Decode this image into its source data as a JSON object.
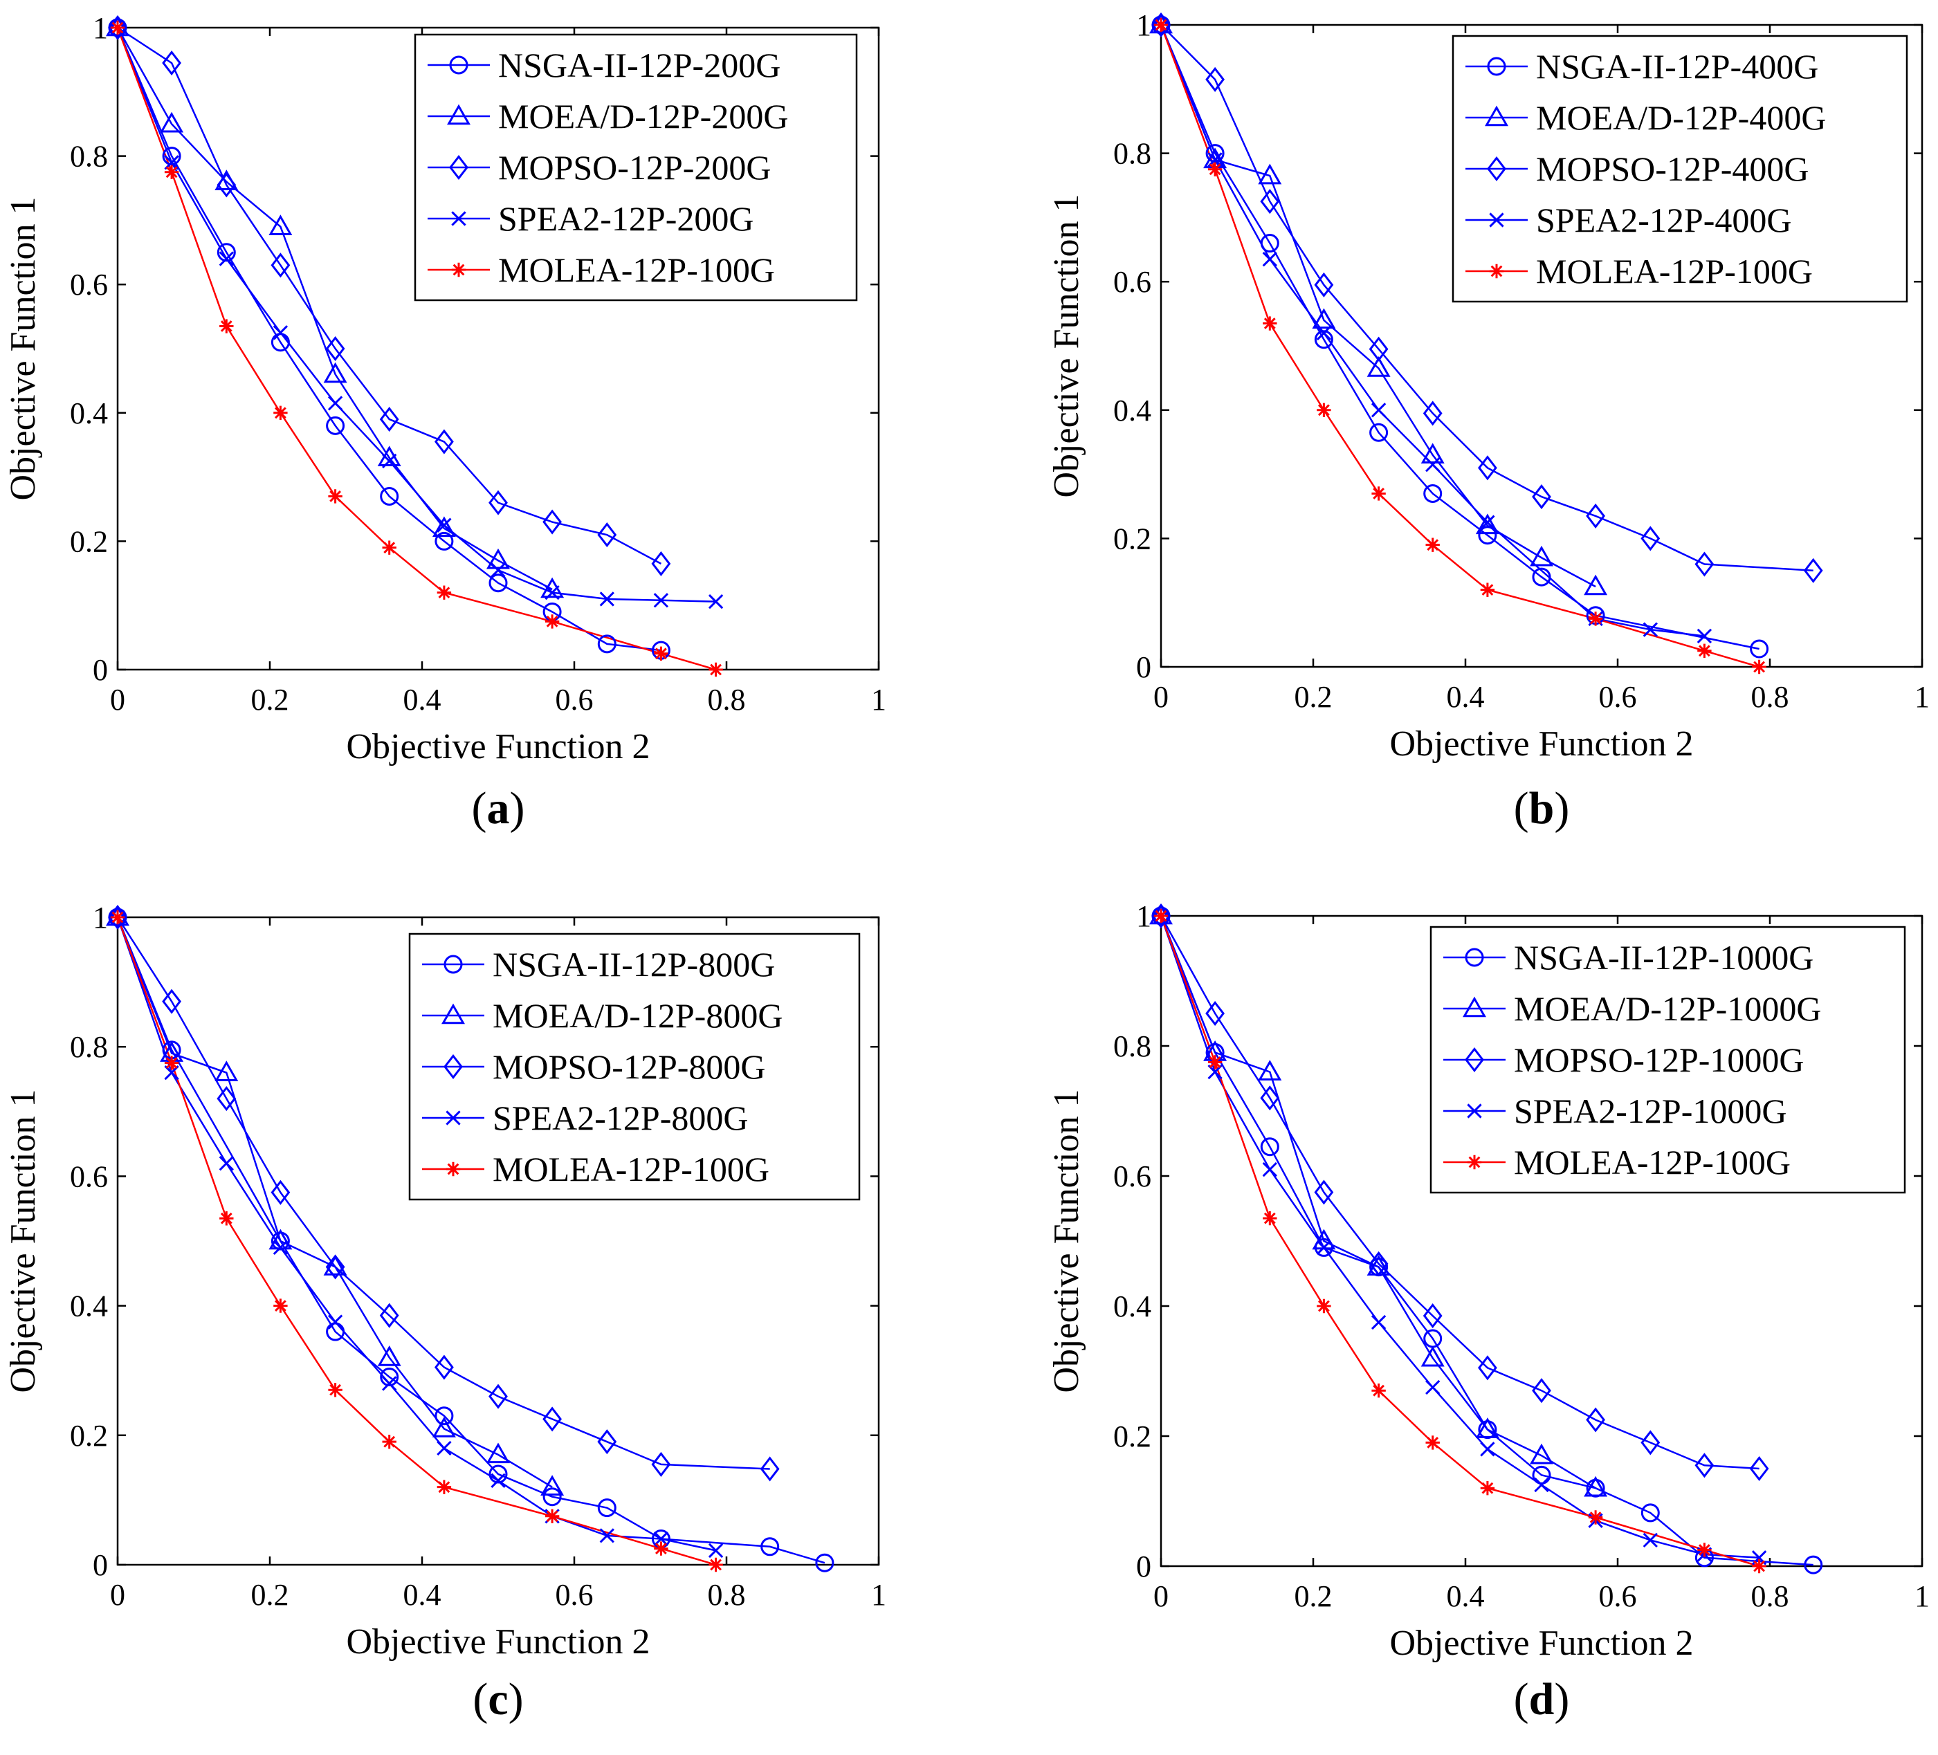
{
  "chart_data": [
    {
      "panel": "(a)",
      "type": "line",
      "xlabel": "Objective Function 2",
      "ylabel": "Objective Function 1",
      "xlim": [
        0,
        1
      ],
      "ylim": [
        0,
        1
      ],
      "xticks": [
        0,
        0.2,
        0.4,
        0.6,
        0.8,
        1
      ],
      "yticks": [
        0,
        0.2,
        0.4,
        0.6,
        0.8,
        1
      ],
      "xtick_labels": [
        "0",
        "0.2",
        "0.4",
        "0.6",
        "0.8",
        "1"
      ],
      "ytick_labels": [
        "0",
        "0.2",
        "0.4",
        "0.6",
        "0.8",
        "1"
      ],
      "legend_position": "top-right",
      "series": [
        {
          "name": "NSGA-II-12P-200G",
          "marker": "circle",
          "color": "#0000ff",
          "x": [
            0,
            0.071,
            0.143,
            0.214,
            0.286,
            0.357,
            0.429,
            0.5,
            0.571,
            0.643,
            0.714
          ],
          "y": [
            1,
            0.8,
            0.65,
            0.51,
            0.38,
            0.27,
            0.2,
            0.135,
            0.09,
            0.04,
            0.03
          ]
        },
        {
          "name": "MOEA/D-12P-200G",
          "marker": "triangle",
          "color": "#0000ff",
          "x": [
            0,
            0.071,
            0.143,
            0.214,
            0.286,
            0.357,
            0.429,
            0.5,
            0.571
          ],
          "y": [
            1,
            0.85,
            0.76,
            0.69,
            0.46,
            0.33,
            0.22,
            0.17,
            0.125
          ]
        },
        {
          "name": "MOPSO-12P-200G",
          "marker": "diamond",
          "color": "#0000ff",
          "x": [
            0,
            0.071,
            0.143,
            0.214,
            0.286,
            0.357,
            0.429,
            0.5,
            0.571,
            0.643,
            0.714
          ],
          "y": [
            1,
            0.945,
            0.755,
            0.63,
            0.5,
            0.39,
            0.355,
            0.26,
            0.23,
            0.21,
            0.165
          ]
        },
        {
          "name": "SPEA2-12P-200G",
          "marker": "x",
          "color": "#0000ff",
          "x": [
            0,
            0.071,
            0.143,
            0.214,
            0.286,
            0.357,
            0.429,
            0.5,
            0.571,
            0.643,
            0.714,
            0.786
          ],
          "y": [
            1,
            0.79,
            0.64,
            0.525,
            0.415,
            0.325,
            0.225,
            0.155,
            0.12,
            0.11,
            0.108,
            0.106
          ]
        },
        {
          "name": "MOLEA-12P-100G",
          "marker": "star",
          "color": "#ff0000",
          "x": [
            0,
            0.071,
            0.143,
            0.214,
            0.286,
            0.357,
            0.429,
            0.571,
            0.714,
            0.786
          ],
          "y": [
            1,
            0.775,
            0.535,
            0.4,
            0.27,
            0.19,
            0.12,
            0.075,
            0.025,
            0
          ]
        }
      ]
    },
    {
      "panel": "(b)",
      "type": "line",
      "xlabel": "Objective Function 2",
      "ylabel": "Objective Function 1",
      "xlim": [
        0,
        1
      ],
      "ylim": [
        0,
        1
      ],
      "xticks": [
        0,
        0.2,
        0.4,
        0.6,
        0.8,
        1
      ],
      "yticks": [
        0,
        0.2,
        0.4,
        0.6,
        0.8,
        1
      ],
      "xtick_labels": [
        "0",
        "0.2",
        "0.4",
        "0.6",
        "0.8",
        "1"
      ],
      "ytick_labels": [
        "0",
        "0.2",
        "0.4",
        "0.6",
        "0.8",
        "1"
      ],
      "legend_position": "top-right",
      "series": [
        {
          "name": "NSGA-II-12P-400G",
          "marker": "circle",
          "color": "#0000ff",
          "x": [
            0,
            0.071,
            0.143,
            0.214,
            0.286,
            0.357,
            0.429,
            0.5,
            0.571,
            0.786
          ],
          "y": [
            1,
            0.8,
            0.66,
            0.51,
            0.365,
            0.27,
            0.205,
            0.14,
            0.08,
            0.028
          ]
        },
        {
          "name": "MOEA/D-12P-400G",
          "marker": "triangle",
          "color": "#0000ff",
          "x": [
            0,
            0.071,
            0.143,
            0.214,
            0.286,
            0.357,
            0.429,
            0.5,
            0.571
          ],
          "y": [
            1,
            0.79,
            0.765,
            0.54,
            0.465,
            0.33,
            0.22,
            0.17,
            0.125
          ]
        },
        {
          "name": "MOPSO-12P-400G",
          "marker": "diamond",
          "color": "#0000ff",
          "x": [
            0,
            0.071,
            0.143,
            0.214,
            0.286,
            0.357,
            0.429,
            0.5,
            0.571,
            0.643,
            0.714,
            0.857
          ],
          "y": [
            1,
            0.915,
            0.725,
            0.595,
            0.495,
            0.395,
            0.31,
            0.265,
            0.235,
            0.2,
            0.16,
            0.15
          ]
        },
        {
          "name": "SPEA2-12P-400G",
          "marker": "x",
          "color": "#0000ff",
          "x": [
            0,
            0.071,
            0.143,
            0.214,
            0.286,
            0.357,
            0.429,
            0.571,
            0.643,
            0.714
          ],
          "y": [
            1,
            0.79,
            0.635,
            0.52,
            0.4,
            0.315,
            0.225,
            0.075,
            0.058,
            0.048
          ]
        },
        {
          "name": "MOLEA-12P-100G",
          "marker": "star",
          "color": "#ff0000",
          "x": [
            0,
            0.071,
            0.143,
            0.214,
            0.286,
            0.357,
            0.429,
            0.571,
            0.714,
            0.786
          ],
          "y": [
            1,
            0.775,
            0.535,
            0.4,
            0.27,
            0.19,
            0.12,
            0.075,
            0.025,
            0
          ]
        }
      ]
    },
    {
      "panel": "(c)",
      "type": "line",
      "xlabel": "Objective Function 2",
      "ylabel": "Objective Function 1",
      "xlim": [
        0,
        1
      ],
      "ylim": [
        0,
        1
      ],
      "xticks": [
        0,
        0.2,
        0.4,
        0.6,
        0.8,
        1
      ],
      "yticks": [
        0,
        0.2,
        0.4,
        0.6,
        0.8,
        1
      ],
      "xtick_labels": [
        "0",
        "0.2",
        "0.4",
        "0.6",
        "0.8",
        "1"
      ],
      "ytick_labels": [
        "0",
        "0.2",
        "0.4",
        "0.6",
        "0.8",
        "1"
      ],
      "legend_position": "top-right",
      "series": [
        {
          "name": "NSGA-II-12P-800G",
          "marker": "circle",
          "color": "#0000ff",
          "x": [
            0,
            0.071,
            0.214,
            0.286,
            0.357,
            0.429,
            0.5,
            0.571,
            0.643,
            0.714,
            0.857,
            0.929
          ],
          "y": [
            1,
            0.795,
            0.5,
            0.36,
            0.29,
            0.23,
            0.14,
            0.105,
            0.088,
            0.04,
            0.028,
            0.003
          ]
        },
        {
          "name": "MOEA/D-12P-800G",
          "marker": "triangle",
          "color": "#0000ff",
          "x": [
            0,
            0.071,
            0.143,
            0.214,
            0.286,
            0.357,
            0.429,
            0.5,
            0.571
          ],
          "y": [
            1,
            0.79,
            0.76,
            0.5,
            0.46,
            0.32,
            0.21,
            0.17,
            0.12
          ]
        },
        {
          "name": "MOPSO-12P-800G",
          "marker": "diamond",
          "color": "#0000ff",
          "x": [
            0,
            0.071,
            0.143,
            0.214,
            0.286,
            0.357,
            0.429,
            0.5,
            0.571,
            0.643,
            0.714,
            0.857
          ],
          "y": [
            1,
            0.87,
            0.72,
            0.575,
            0.46,
            0.385,
            0.305,
            0.26,
            0.225,
            0.19,
            0.155,
            0.148
          ]
        },
        {
          "name": "SPEA2-12P-800G",
          "marker": "x",
          "color": "#0000ff",
          "x": [
            0,
            0.071,
            0.143,
            0.214,
            0.286,
            0.357,
            0.429,
            0.5,
            0.571,
            0.643,
            0.714,
            0.786
          ],
          "y": [
            1,
            0.76,
            0.62,
            0.49,
            0.375,
            0.28,
            0.18,
            0.13,
            0.075,
            0.045,
            0.04,
            0.022
          ]
        },
        {
          "name": "MOLEA-12P-100G",
          "marker": "star",
          "color": "#ff0000",
          "x": [
            0,
            0.071,
            0.143,
            0.214,
            0.286,
            0.357,
            0.429,
            0.571,
            0.714,
            0.786
          ],
          "y": [
            1,
            0.775,
            0.535,
            0.4,
            0.27,
            0.19,
            0.12,
            0.075,
            0.025,
            0
          ]
        }
      ]
    },
    {
      "panel": "(d)",
      "type": "line",
      "xlabel": "Objective Function 2",
      "ylabel": "Objective Function 1",
      "xlim": [
        0,
        1
      ],
      "ylim": [
        0,
        1
      ],
      "xticks": [
        0,
        0.2,
        0.4,
        0.6,
        0.8,
        1
      ],
      "yticks": [
        0,
        0.2,
        0.4,
        0.6,
        0.8,
        1
      ],
      "xtick_labels": [
        "0",
        "0.2",
        "0.4",
        "0.6",
        "0.8",
        "1"
      ],
      "ytick_labels": [
        "0",
        "0.2",
        "0.4",
        "0.6",
        "0.8",
        "1"
      ],
      "legend_position": "top-right",
      "series": [
        {
          "name": "NSGA-II-12P-1000G",
          "marker": "circle",
          "color": "#0000ff",
          "x": [
            0,
            0.071,
            0.143,
            0.214,
            0.286,
            0.357,
            0.429,
            0.5,
            0.571,
            0.643,
            0.714,
            0.857
          ],
          "y": [
            1,
            0.79,
            0.645,
            0.49,
            0.46,
            0.35,
            0.21,
            0.14,
            0.12,
            0.082,
            0.013,
            0.002
          ]
        },
        {
          "name": "MOEA/D-12P-1000G",
          "marker": "triangle",
          "color": "#0000ff",
          "x": [
            0,
            0.071,
            0.143,
            0.214,
            0.286,
            0.357,
            0.429,
            0.5,
            0.571
          ],
          "y": [
            1,
            0.79,
            0.76,
            0.5,
            0.46,
            0.32,
            0.21,
            0.17,
            0.12
          ]
        },
        {
          "name": "MOPSO-12P-1000G",
          "marker": "diamond",
          "color": "#0000ff",
          "x": [
            0,
            0.071,
            0.143,
            0.214,
            0.286,
            0.357,
            0.429,
            0.5,
            0.571,
            0.643,
            0.714,
            0.786
          ],
          "y": [
            1,
            0.85,
            0.72,
            0.575,
            0.465,
            0.385,
            0.305,
            0.27,
            0.225,
            0.19,
            0.155,
            0.15
          ]
        },
        {
          "name": "SPEA2-12P-1000G",
          "marker": "x",
          "color": "#0000ff",
          "x": [
            0,
            0.071,
            0.143,
            0.214,
            0.286,
            0.357,
            0.429,
            0.5,
            0.571,
            0.643,
            0.714,
            0.786
          ],
          "y": [
            1,
            0.76,
            0.61,
            0.49,
            0.375,
            0.275,
            0.18,
            0.125,
            0.07,
            0.04,
            0.018,
            0.013
          ]
        },
        {
          "name": "MOLEA-12P-100G",
          "marker": "star",
          "color": "#ff0000",
          "x": [
            0,
            0.071,
            0.143,
            0.214,
            0.286,
            0.357,
            0.429,
            0.571,
            0.714,
            0.786
          ],
          "y": [
            1,
            0.775,
            0.535,
            0.4,
            0.27,
            0.19,
            0.12,
            0.075,
            0.025,
            0
          ]
        }
      ]
    }
  ]
}
